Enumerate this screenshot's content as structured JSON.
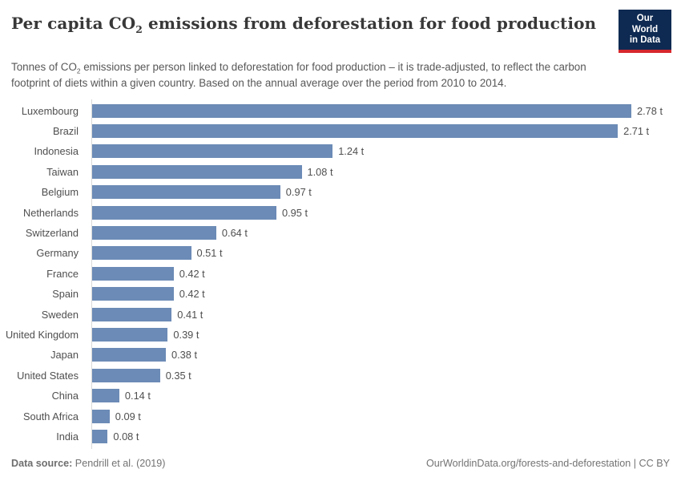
{
  "header": {
    "title": {
      "prefix": "Per capita CO",
      "sub": "2",
      "suffix": " emissions from deforestation for food production"
    },
    "subtitle": {
      "prefix": "Tonnes of CO",
      "sub": "2",
      "suffix": " emissions per person linked to deforestation for food production – it is trade-adjusted, to reflect the carbon footprint of diets within a given country. Based on the annual average over the period from 2010 to 2014."
    },
    "logo": {
      "line1": "Our World",
      "line2": "in Data"
    }
  },
  "chart_data": {
    "type": "bar",
    "orientation": "horizontal",
    "title": "Per capita CO2 emissions from deforestation for food production",
    "unit": "t",
    "xlim": [
      0,
      2.78
    ],
    "grid": false,
    "legend": false,
    "categories": [
      "Luxembourg",
      "Brazil",
      "Indonesia",
      "Taiwan",
      "Belgium",
      "Netherlands",
      "Switzerland",
      "Germany",
      "France",
      "Spain",
      "Sweden",
      "United Kingdom",
      "Japan",
      "United States",
      "China",
      "South Africa",
      "India"
    ],
    "values": [
      2.78,
      2.71,
      1.24,
      1.08,
      0.97,
      0.95,
      0.64,
      0.51,
      0.42,
      0.42,
      0.41,
      0.39,
      0.38,
      0.35,
      0.14,
      0.09,
      0.08
    ],
    "value_labels": [
      "2.78 t",
      "2.71 t",
      "1.24 t",
      "1.08 t",
      "0.97 t",
      "0.95 t",
      "0.64 t",
      "0.51 t",
      "0.42 t",
      "0.42 t",
      "0.41 t",
      "0.39 t",
      "0.38 t",
      "0.35 t",
      "0.14 t",
      "0.09 t",
      "0.08 t"
    ]
  },
  "footer": {
    "source_label": "Data source:",
    "source_value": " Pendrill et al. (2019)",
    "credit": "OurWorldinData.org/forests-and-deforestation | CC BY"
  },
  "colors": {
    "bar": "#6c8bb6",
    "axis": "#d9d9d9",
    "logo_background": "#0e2a52",
    "logo_underline": "#d6282d"
  }
}
